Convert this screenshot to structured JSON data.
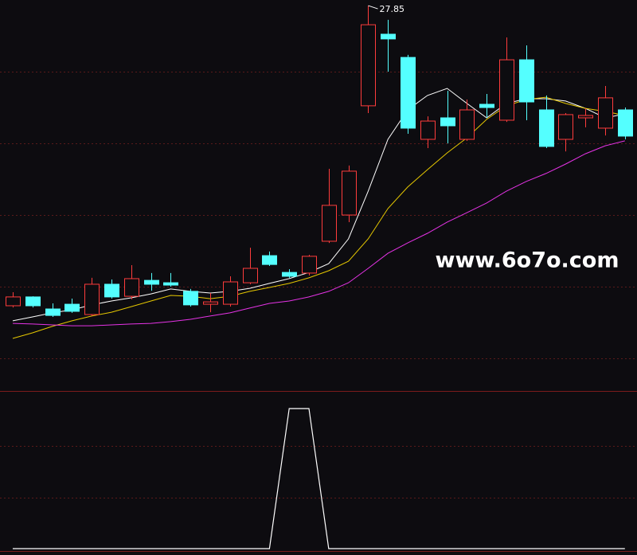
{
  "chart_data": [
    {
      "type": "candlestick",
      "watermark": "www.6o7o.com",
      "up_color": "#ff3c3c",
      "down_color": "#54ffff",
      "ylim": [
        10,
        28
      ],
      "grid": true,
      "open": [
        13.89,
        14.3,
        13.74,
        13.96,
        13.48,
        14.89,
        14.33,
        15.07,
        14.96,
        14.56,
        13.96,
        13.96,
        14.96,
        16.22,
        15.44,
        15.41,
        16.89,
        18.11,
        23.19,
        26.52,
        25.44,
        21.63,
        22.63,
        21.63,
        23.26,
        22.52,
        25.33,
        23.0,
        21.63,
        22.63,
        22.15,
        23.0
      ],
      "high": [
        14.52,
        14.33,
        14.0,
        14.22,
        15.19,
        15.11,
        15.78,
        15.41,
        15.41,
        14.67,
        14.48,
        15.26,
        16.59,
        16.41,
        15.59,
        16.26,
        20.26,
        20.41,
        27.85,
        27.19,
        25.56,
        22.7,
        23.89,
        23.48,
        23.74,
        26.37,
        26.0,
        23.67,
        22.85,
        23.07,
        24.11,
        23.11
      ],
      "low": [
        13.81,
        13.81,
        13.37,
        13.56,
        13.41,
        14.22,
        14.19,
        14.59,
        14.78,
        13.85,
        13.59,
        13.85,
        14.89,
        15.74,
        15.19,
        15.3,
        16.81,
        17.78,
        22.85,
        24.78,
        21.89,
        21.22,
        21.44,
        21.56,
        22.63,
        22.44,
        22.52,
        21.22,
        21.07,
        22.19,
        21.81,
        21.63
      ],
      "close": [
        14.3,
        13.89,
        13.44,
        13.63,
        14.89,
        14.3,
        15.15,
        14.89,
        14.85,
        13.93,
        14.07,
        15.0,
        15.63,
        15.81,
        15.26,
        16.19,
        18.56,
        20.15,
        26.96,
        26.3,
        22.15,
        22.48,
        22.26,
        23.0,
        23.11,
        25.33,
        23.37,
        21.3,
        22.78,
        22.74,
        23.56,
        21.78
      ],
      "lines": [
        {
          "color": "#ffffff",
          "values": [
            13.19,
            13.37,
            13.56,
            13.7,
            13.93,
            14.11,
            14.26,
            14.44,
            14.67,
            14.56,
            14.48,
            14.56,
            14.7,
            14.93,
            15.15,
            15.44,
            15.85,
            17.0,
            19.22,
            21.63,
            23.0,
            23.67,
            24.0,
            23.3,
            22.63,
            23.3,
            23.52,
            23.52,
            23.41,
            23.07,
            22.63,
            22.81
          ]
        },
        {
          "color": "#e6c800",
          "values": [
            12.37,
            12.63,
            12.93,
            13.19,
            13.41,
            13.59,
            13.85,
            14.11,
            14.37,
            14.33,
            14.22,
            14.33,
            14.56,
            14.74,
            14.93,
            15.19,
            15.52,
            15.96,
            17.0,
            18.41,
            19.41,
            20.22,
            21.0,
            21.7,
            22.56,
            23.19,
            23.48,
            23.59,
            23.3,
            23.07,
            22.93,
            22.74
          ]
        },
        {
          "color": "#e633e6",
          "values": [
            13.07,
            13.04,
            13.0,
            12.96,
            12.96,
            13.0,
            13.04,
            13.07,
            13.15,
            13.26,
            13.41,
            13.56,
            13.78,
            14.0,
            14.11,
            14.3,
            14.56,
            14.96,
            15.63,
            16.33,
            16.81,
            17.26,
            17.78,
            18.22,
            18.67,
            19.22,
            19.67,
            20.04,
            20.48,
            20.96,
            21.33,
            21.56
          ]
        }
      ]
    },
    {
      "type": "line",
      "color": "#ffffff",
      "ylim": [
        0,
        1.12
      ],
      "values": [
        0,
        0,
        0,
        0,
        0,
        0,
        0,
        0,
        0,
        0,
        0,
        0,
        0,
        0,
        1,
        1,
        0,
        0,
        0,
        0,
        0,
        0,
        0,
        0,
        0,
        0,
        0,
        0,
        0,
        0,
        0,
        0
      ]
    }
  ]
}
